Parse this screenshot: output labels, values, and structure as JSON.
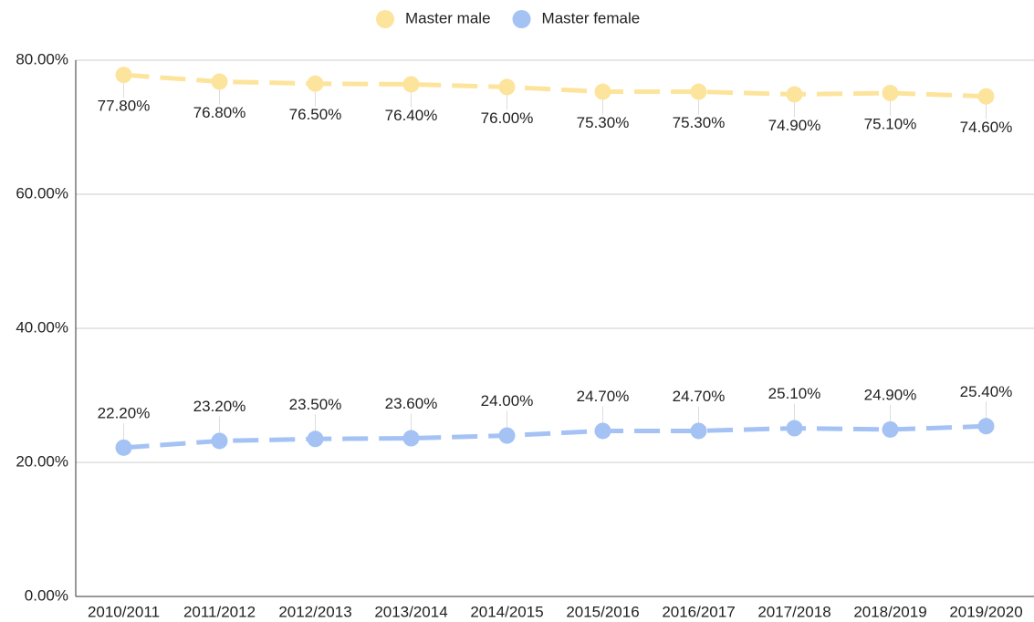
{
  "chart_data": {
    "type": "line",
    "categories": [
      "2010/2011",
      "2011/2012",
      "2012/2013",
      "2013/2014",
      "2014/2015",
      "2015/2016",
      "2016/2017",
      "2017/2018",
      "2018/2019",
      "2019/2020"
    ],
    "series": [
      {
        "name": "Master male",
        "color": "#fde49c",
        "values": [
          77.8,
          76.8,
          76.5,
          76.4,
          76.0,
          75.3,
          75.3,
          74.9,
          75.1,
          74.6
        ],
        "value_labels": [
          "77.80%",
          "76.80%",
          "76.50%",
          "76.40%",
          "76.00%",
          "75.30%",
          "75.30%",
          "74.90%",
          "75.10%",
          "74.60%"
        ]
      },
      {
        "name": "Master female",
        "color": "#a4c2f4",
        "values": [
          22.2,
          23.2,
          23.5,
          23.6,
          24.0,
          24.7,
          24.7,
          25.1,
          24.9,
          25.4
        ],
        "value_labels": [
          "22.20%",
          "23.20%",
          "23.50%",
          "23.60%",
          "24.00%",
          "24.70%",
          "24.70%",
          "25.10%",
          "24.90%",
          "25.40%"
        ]
      }
    ],
    "ylim": [
      0,
      80
    ],
    "yticks": [
      {
        "value": 0,
        "label": "0.00%"
      },
      {
        "value": 20,
        "label": "20.00%"
      },
      {
        "value": 40,
        "label": "40.00%"
      },
      {
        "value": 60,
        "label": "60.00%"
      },
      {
        "value": 80,
        "label": "80.00%"
      }
    ],
    "grid": true,
    "legend": "top"
  }
}
